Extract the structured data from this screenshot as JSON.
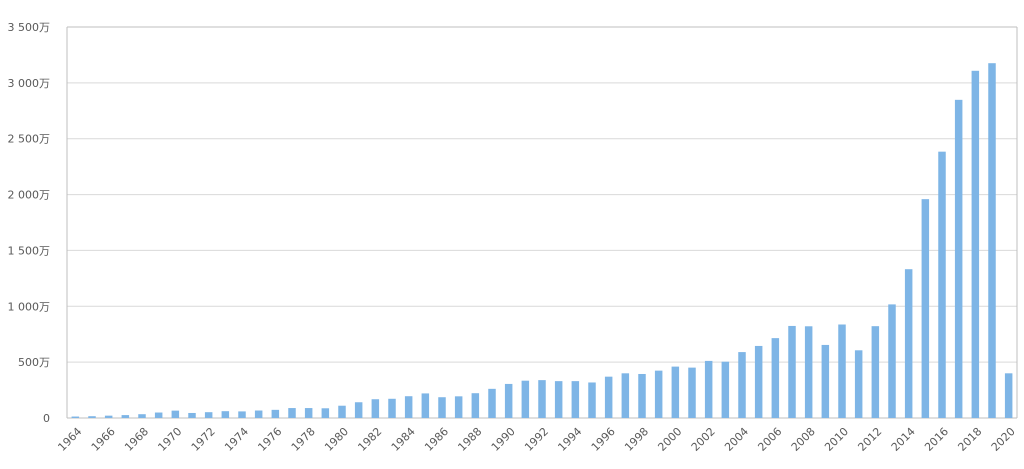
{
  "chart_data": {
    "type": "bar",
    "title": "",
    "xlabel": "",
    "ylabel": "",
    "ylim": [
      0,
      35000000
    ],
    "grid": true,
    "bar_color": "#7eb5e6",
    "grid_color": "#d9d9d9",
    "axis_color": "#bfbfbf",
    "y_ticks": [
      {
        "value": 0,
        "label": "0"
      },
      {
        "value": 5000000,
        "label": "500万"
      },
      {
        "value": 10000000,
        "label": "1 000万"
      },
      {
        "value": 15000000,
        "label": "1 500万"
      },
      {
        "value": 20000000,
        "label": "2 000万"
      },
      {
        "value": 25000000,
        "label": "2 500万"
      },
      {
        "value": 30000000,
        "label": "3 000万"
      },
      {
        "value": 35000000,
        "label": "3 500万"
      }
    ],
    "categories": [
      "1964",
      "1965",
      "1966",
      "1967",
      "1968",
      "1969",
      "1970",
      "1971",
      "1972",
      "1973",
      "1974",
      "1975",
      "1976",
      "1977",
      "1978",
      "1979",
      "1980",
      "1981",
      "1982",
      "1983",
      "1984",
      "1985",
      "1986",
      "1987",
      "1988",
      "1989",
      "1990",
      "1991",
      "1992",
      "1993",
      "1994",
      "1995",
      "1996",
      "1997",
      "1998",
      "1999",
      "2000",
      "2001",
      "2002",
      "2003",
      "2004",
      "2005",
      "2006",
      "2007",
      "2008",
      "2009",
      "2010",
      "2011",
      "2012",
      "2013",
      "2014",
      "2015",
      "2016",
      "2017",
      "2018",
      "2019",
      "2020"
    ],
    "x_tick_labels": [
      "1964",
      "1966",
      "1968",
      "1970",
      "1972",
      "1974",
      "1976",
      "1978",
      "1980",
      "1982",
      "1984",
      "1986",
      "1988",
      "1990",
      "1992",
      "1994",
      "1996",
      "1998",
      "2000",
      "2002",
      "2004",
      "2006",
      "2008",
      "2010",
      "2012",
      "2014",
      "2016",
      "2018",
      "2020"
    ],
    "values": [
      130000,
      160000,
      210000,
      260000,
      340000,
      490000,
      660000,
      450000,
      520000,
      610000,
      590000,
      670000,
      730000,
      890000,
      890000,
      870000,
      1100000,
      1410000,
      1680000,
      1720000,
      1950000,
      2200000,
      1860000,
      1940000,
      2220000,
      2610000,
      3050000,
      3340000,
      3390000,
      3300000,
      3300000,
      3180000,
      3700000,
      4000000,
      3940000,
      4240000,
      4600000,
      4510000,
      5110000,
      5040000,
      5900000,
      6450000,
      7150000,
      8240000,
      8210000,
      6540000,
      8370000,
      6060000,
      8220000,
      10170000,
      13320000,
      19590000,
      23840000,
      28480000,
      31080000,
      31760000,
      4000000
    ]
  }
}
